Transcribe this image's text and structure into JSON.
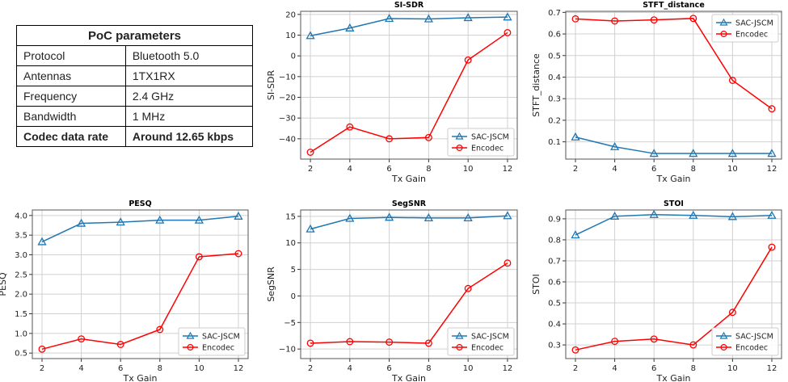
{
  "table": {
    "title": "PoC parameters",
    "rows": [
      {
        "label": "Protocol",
        "value": "Bluetooth 5.0"
      },
      {
        "label": "Antennas",
        "value": "1TX1RX"
      },
      {
        "label": "Frequency",
        "value": "2.4 GHz"
      },
      {
        "label": "Bandwidth",
        "value": "1 MHz"
      },
      {
        "label": "Codec data rate",
        "value": "Around 12.65 kbps"
      }
    ]
  },
  "colors": {
    "sac": "#1f77b4",
    "encodec": "#ff0000"
  },
  "chart_data": [
    {
      "type": "line",
      "title": "SI-SDR",
      "xlabel": "Tx Gain",
      "ylabel": "SI-SDR",
      "x": [
        2,
        4,
        6,
        8,
        10,
        12
      ],
      "xticks": [
        "2",
        "4",
        "6",
        "8",
        "10",
        "12"
      ],
      "yticks": [
        -40,
        -30,
        -20,
        -10,
        0,
        10,
        20
      ],
      "ytick_labels": [
        "−40",
        "−30",
        "−20",
        "−10",
        "0",
        "10",
        "20"
      ],
      "ylim": [
        -49.8,
        21.5
      ],
      "legend": "lower-right",
      "grid": true,
      "series": [
        {
          "name": "SAC-JSCM",
          "marker": "triangle",
          "values": [
            9.7,
            13.4,
            18.0,
            17.8,
            18.4,
            18.7
          ]
        },
        {
          "name": "Encodec",
          "marker": "circle",
          "values": [
            -46.5,
            -34.3,
            -40.0,
            -39.4,
            -2.0,
            11.2
          ]
        }
      ]
    },
    {
      "type": "line",
      "title": "STFT_distance",
      "xlabel": "Tx Gain",
      "ylabel": "STFT_distance",
      "x": [
        2,
        4,
        6,
        8,
        10,
        12
      ],
      "xticks": [
        "2",
        "4",
        "6",
        "8",
        "10",
        "12"
      ],
      "yticks": [
        0.1,
        0.2,
        0.3,
        0.4,
        0.5,
        0.6,
        0.7
      ],
      "ytick_labels": [
        "0.1",
        "0.2",
        "0.3",
        "0.4",
        "0.5",
        "0.6",
        "0.7"
      ],
      "ylim": [
        0.02,
        0.705
      ],
      "legend": "upper-right",
      "grid": true,
      "series": [
        {
          "name": "SAC-JSCM",
          "marker": "triangle",
          "values": [
            0.122,
            0.077,
            0.046,
            0.046,
            0.046,
            0.046
          ]
        },
        {
          "name": "Encodec",
          "marker": "circle",
          "values": [
            0.67,
            0.66,
            0.665,
            0.672,
            0.385,
            0.253
          ]
        }
      ]
    },
    {
      "type": "line",
      "title": "PESQ",
      "xlabel": "Tx Gain",
      "ylabel": "PESQ",
      "x": [
        2,
        4,
        6,
        8,
        10,
        12
      ],
      "xticks": [
        "2",
        "4",
        "6",
        "8",
        "10",
        "12"
      ],
      "yticks": [
        0.5,
        1.0,
        1.5,
        2.0,
        2.5,
        3.0,
        3.5,
        4.0
      ],
      "ytick_labels": [
        "0.5",
        "1.0",
        "1.5",
        "2.0",
        "2.5",
        "3.0",
        "3.5",
        "4.0"
      ],
      "ylim": [
        0.36,
        4.14
      ],
      "legend": "lower-right",
      "grid": true,
      "series": [
        {
          "name": "SAC-JSCM",
          "marker": "triangle",
          "values": [
            3.33,
            3.8,
            3.83,
            3.88,
            3.88,
            3.98
          ]
        },
        {
          "name": "Encodec",
          "marker": "circle",
          "values": [
            0.6,
            0.86,
            0.72,
            1.1,
            2.95,
            3.03
          ]
        }
      ]
    },
    {
      "type": "line",
      "title": "SegSNR",
      "xlabel": "Tx Gain",
      "ylabel": "SegSNR",
      "x": [
        2,
        4,
        6,
        8,
        10,
        12
      ],
      "xticks": [
        "2",
        "4",
        "6",
        "8",
        "10",
        "12"
      ],
      "yticks": [
        -10,
        -5,
        0,
        5,
        10,
        15
      ],
      "ytick_labels": [
        "−10",
        "−5",
        "0",
        "5",
        "10",
        "15"
      ],
      "ylim": [
        -11.8,
        16.2
      ],
      "legend": "lower-right",
      "grid": true,
      "series": [
        {
          "name": "SAC-JSCM",
          "marker": "triangle",
          "values": [
            12.6,
            14.6,
            14.8,
            14.7,
            14.7,
            15.1
          ]
        },
        {
          "name": "Encodec",
          "marker": "circle",
          "values": [
            -8.9,
            -8.6,
            -8.7,
            -8.9,
            1.4,
            6.2
          ]
        }
      ]
    },
    {
      "type": "line",
      "title": "STOI",
      "xlabel": "Tx Gain",
      "ylabel": "STOI",
      "x": [
        2,
        4,
        6,
        8,
        10,
        12
      ],
      "xticks": [
        "2",
        "4",
        "6",
        "8",
        "10",
        "12"
      ],
      "yticks": [
        0.3,
        0.4,
        0.5,
        0.6,
        0.7,
        0.8,
        0.9
      ],
      "ytick_labels": [
        "0.3",
        "0.4",
        "0.5",
        "0.6",
        "0.7",
        "0.8",
        "0.9"
      ],
      "ylim": [
        0.235,
        0.942
      ],
      "legend": "lower-right",
      "grid": true,
      "series": [
        {
          "name": "SAC-JSCM",
          "marker": "triangle",
          "values": [
            0.823,
            0.912,
            0.92,
            0.916,
            0.91,
            0.916
          ]
        },
        {
          "name": "Encodec",
          "marker": "circle",
          "values": [
            0.276,
            0.317,
            0.328,
            0.3,
            0.455,
            0.765
          ]
        }
      ]
    }
  ]
}
